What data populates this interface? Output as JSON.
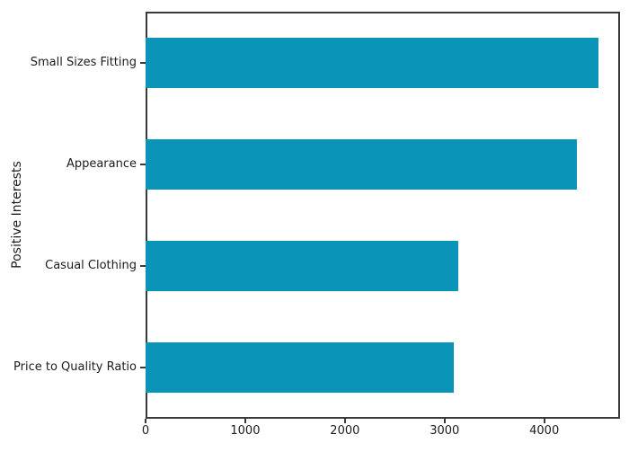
{
  "chart_data": {
    "type": "bar",
    "orientation": "horizontal",
    "title": "",
    "xlabel": "",
    "ylabel": "Positive Interests",
    "categories": [
      "Small Sizes Fitting",
      "Appearance",
      "Casual Clothing",
      "Price to Quality Ratio"
    ],
    "values": [
      4540,
      4330,
      3140,
      3090
    ],
    "xticks": [
      0,
      1000,
      2000,
      3000,
      4000
    ],
    "xlim": [
      0,
      4760
    ],
    "grid": false,
    "legend_position": "none",
    "bar_color": "#0a94b7",
    "axis_color": "#3a3a3a",
    "text_color": "#1c1c1c",
    "background_color": "#ffffff"
  }
}
